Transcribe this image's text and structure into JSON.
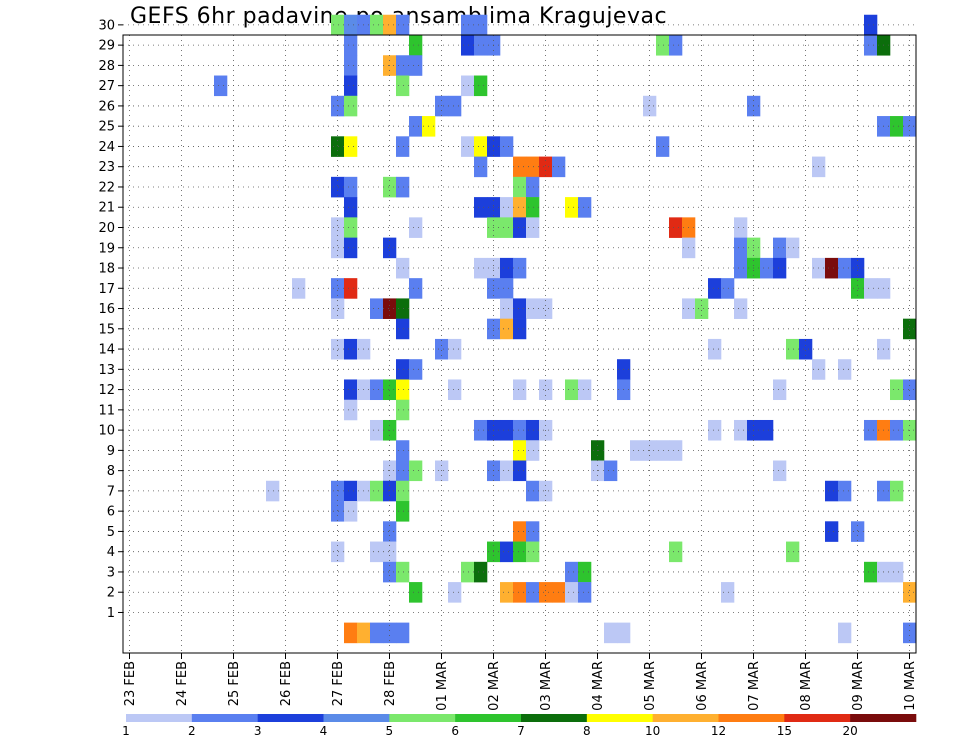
{
  "title": "GEFS 6hr padavine po ansamblima Kragujevac",
  "chart_data": {
    "type": "heatmap",
    "title": "GEFS 6hr padavine po ansamblima Kragujevac",
    "y_ticks": [
      "1",
      "2",
      "3",
      "4",
      "5",
      "6",
      "7",
      "8",
      "9",
      "10",
      "11",
      "12",
      "13",
      "14",
      "15",
      "16",
      "17",
      "18",
      "19",
      "20",
      "21",
      "22",
      "23",
      "24",
      "25",
      "26",
      "27",
      "28",
      "29",
      "30"
    ],
    "x_ticks": [
      "23 FEB",
      "24 FEB",
      "25 FEB",
      "26 FEB",
      "27 FEB",
      "28 FEB",
      "01 MAR",
      "02 MAR",
      "03 MAR",
      "04 MAR",
      "05 MAR",
      "06 MAR",
      "07 MAR",
      "08 MAR",
      "09 MAR",
      "10 MAR"
    ],
    "time_step_hours": 6,
    "members": 30,
    "legend_labels": [
      "1",
      "2",
      "3",
      "4",
      "5",
      "6",
      "7",
      "8",
      "10",
      "12",
      "15",
      "20"
    ],
    "legend_colors": [
      "#bcc8f5",
      "#5a7ff0",
      "#1c3fdb",
      "#5b8be8",
      "#7be86c",
      "#2ec42e",
      "#0c6e0c",
      "#ffff00",
      "#ffb030",
      "#ff7d12",
      "#e02a14",
      "#7a0c0c"
    ],
    "cells": [
      {
        "m": 30,
        "t": 16,
        "c": 4
      },
      {
        "m": 30,
        "t": 17,
        "c": 3
      },
      {
        "m": 30,
        "t": 18,
        "c": 1
      },
      {
        "m": 30,
        "t": 19,
        "c": 4
      },
      {
        "m": 30,
        "t": 20,
        "c": 8
      },
      {
        "m": 30,
        "t": 21,
        "c": 1
      },
      {
        "m": 30,
        "t": 26,
        "c": 1
      },
      {
        "m": 30,
        "t": 27,
        "c": 1
      },
      {
        "m": 30,
        "t": 57,
        "c": 2
      },
      {
        "m": 29,
        "t": 17,
        "c": 1
      },
      {
        "m": 29,
        "t": 22,
        "c": 5
      },
      {
        "m": 29,
        "t": 26,
        "c": 2
      },
      {
        "m": 29,
        "t": 27,
        "c": 1
      },
      {
        "m": 29,
        "t": 28,
        "c": 1
      },
      {
        "m": 29,
        "t": 41,
        "c": 4
      },
      {
        "m": 29,
        "t": 42,
        "c": 1
      },
      {
        "m": 29,
        "t": 57,
        "c": 1
      },
      {
        "m": 29,
        "t": 58,
        "c": 6
      },
      {
        "m": 28,
        "t": 17,
        "c": 1
      },
      {
        "m": 28,
        "t": 20,
        "c": 8
      },
      {
        "m": 28,
        "t": 21,
        "c": 1
      },
      {
        "m": 28,
        "t": 22,
        "c": 1
      },
      {
        "m": 27,
        "t": 7,
        "c": 1
      },
      {
        "m": 27,
        "t": 17,
        "c": 2
      },
      {
        "m": 27,
        "t": 21,
        "c": 4
      },
      {
        "m": 27,
        "t": 26,
        "c": 0
      },
      {
        "m": 27,
        "t": 27,
        "c": 5
      },
      {
        "m": 26,
        "t": 16,
        "c": 1
      },
      {
        "m": 26,
        "t": 17,
        "c": 4
      },
      {
        "m": 26,
        "t": 24,
        "c": 1
      },
      {
        "m": 26,
        "t": 25,
        "c": 1
      },
      {
        "m": 26,
        "t": 40,
        "c": 0
      },
      {
        "m": 26,
        "t": 48,
        "c": 1
      },
      {
        "m": 25,
        "t": 22,
        "c": 1
      },
      {
        "m": 25,
        "t": 23,
        "c": 7
      },
      {
        "m": 25,
        "t": 58,
        "c": 1
      },
      {
        "m": 25,
        "t": 59,
        "c": 5
      },
      {
        "m": 25,
        "t": 60,
        "c": 1
      },
      {
        "m": 24,
        "t": 16,
        "c": 6
      },
      {
        "m": 24,
        "t": 17,
        "c": 7
      },
      {
        "m": 24,
        "t": 21,
        "c": 1
      },
      {
        "m": 24,
        "t": 26,
        "c": 0
      },
      {
        "m": 24,
        "t": 27,
        "c": 7
      },
      {
        "m": 24,
        "t": 28,
        "c": 2
      },
      {
        "m": 24,
        "t": 29,
        "c": 1
      },
      {
        "m": 24,
        "t": 41,
        "c": 1
      },
      {
        "m": 23,
        "t": 27,
        "c": 1
      },
      {
        "m": 23,
        "t": 30,
        "c": 9
      },
      {
        "m": 23,
        "t": 31,
        "c": 9
      },
      {
        "m": 23,
        "t": 32,
        "c": 10
      },
      {
        "m": 23,
        "t": 33,
        "c": 1
      },
      {
        "m": 23,
        "t": 53,
        "c": 0
      },
      {
        "m": 22,
        "t": 16,
        "c": 2
      },
      {
        "m": 22,
        "t": 17,
        "c": 1
      },
      {
        "m": 22,
        "t": 20,
        "c": 4
      },
      {
        "m": 22,
        "t": 21,
        "c": 1
      },
      {
        "m": 22,
        "t": 30,
        "c": 4
      },
      {
        "m": 22,
        "t": 31,
        "c": 1
      },
      {
        "m": 21,
        "t": 17,
        "c": 2
      },
      {
        "m": 21,
        "t": 27,
        "c": 2
      },
      {
        "m": 21,
        "t": 28,
        "c": 2
      },
      {
        "m": 21,
        "t": 29,
        "c": 0
      },
      {
        "m": 21,
        "t": 30,
        "c": 8
      },
      {
        "m": 21,
        "t": 31,
        "c": 5
      },
      {
        "m": 21,
        "t": 34,
        "c": 7
      },
      {
        "m": 21,
        "t": 35,
        "c": 1
      },
      {
        "m": 20,
        "t": 16,
        "c": 0
      },
      {
        "m": 20,
        "t": 17,
        "c": 4
      },
      {
        "m": 20,
        "t": 22,
        "c": 0
      },
      {
        "m": 20,
        "t": 28,
        "c": 4
      },
      {
        "m": 20,
        "t": 29,
        "c": 4
      },
      {
        "m": 20,
        "t": 30,
        "c": 2
      },
      {
        "m": 20,
        "t": 31,
        "c": 0
      },
      {
        "m": 20,
        "t": 42,
        "c": 10
      },
      {
        "m": 20,
        "t": 43,
        "c": 9
      },
      {
        "m": 20,
        "t": 47,
        "c": 0
      },
      {
        "m": 19,
        "t": 16,
        "c": 0
      },
      {
        "m": 19,
        "t": 17,
        "c": 2
      },
      {
        "m": 19,
        "t": 20,
        "c": 2
      },
      {
        "m": 19,
        "t": 43,
        "c": 0
      },
      {
        "m": 19,
        "t": 47,
        "c": 1
      },
      {
        "m": 19,
        "t": 48,
        "c": 4
      },
      {
        "m": 19,
        "t": 50,
        "c": 1
      },
      {
        "m": 19,
        "t": 51,
        "c": 0
      },
      {
        "m": 18,
        "t": 21,
        "c": 0
      },
      {
        "m": 18,
        "t": 27,
        "c": 0
      },
      {
        "m": 18,
        "t": 28,
        "c": 0
      },
      {
        "m": 18,
        "t": 29,
        "c": 2
      },
      {
        "m": 18,
        "t": 30,
        "c": 1
      },
      {
        "m": 18,
        "t": 47,
        "c": 1
      },
      {
        "m": 18,
        "t": 48,
        "c": 5
      },
      {
        "m": 18,
        "t": 49,
        "c": 1
      },
      {
        "m": 18,
        "t": 50,
        "c": 2
      },
      {
        "m": 18,
        "t": 53,
        "c": 0
      },
      {
        "m": 18,
        "t": 54,
        "c": 11
      },
      {
        "m": 18,
        "t": 55,
        "c": 1
      },
      {
        "m": 18,
        "t": 56,
        "c": 2
      },
      {
        "m": 17,
        "t": 13,
        "c": 0
      },
      {
        "m": 17,
        "t": 16,
        "c": 1
      },
      {
        "m": 17,
        "t": 17,
        "c": 10
      },
      {
        "m": 17,
        "t": 22,
        "c": 1
      },
      {
        "m": 17,
        "t": 28,
        "c": 1
      },
      {
        "m": 17,
        "t": 29,
        "c": 1
      },
      {
        "m": 17,
        "t": 45,
        "c": 2
      },
      {
        "m": 17,
        "t": 46,
        "c": 1
      },
      {
        "m": 17,
        "t": 56,
        "c": 5
      },
      {
        "m": 17,
        "t": 57,
        "c": 0
      },
      {
        "m": 17,
        "t": 58,
        "c": 0
      },
      {
        "m": 16,
        "t": 16,
        "c": 0
      },
      {
        "m": 16,
        "t": 19,
        "c": 1
      },
      {
        "m": 16,
        "t": 20,
        "c": 11
      },
      {
        "m": 16,
        "t": 21,
        "c": 6
      },
      {
        "m": 16,
        "t": 29,
        "c": 0
      },
      {
        "m": 16,
        "t": 30,
        "c": 2
      },
      {
        "m": 16,
        "t": 31,
        "c": 0
      },
      {
        "m": 16,
        "t": 32,
        "c": 0
      },
      {
        "m": 16,
        "t": 43,
        "c": 0
      },
      {
        "m": 16,
        "t": 44,
        "c": 4
      },
      {
        "m": 16,
        "t": 47,
        "c": 0
      },
      {
        "m": 15,
        "t": 21,
        "c": 2
      },
      {
        "m": 15,
        "t": 28,
        "c": 1
      },
      {
        "m": 15,
        "t": 29,
        "c": 8
      },
      {
        "m": 15,
        "t": 30,
        "c": 2
      },
      {
        "m": 15,
        "t": 60,
        "c": 6
      },
      {
        "m": 14,
        "t": 16,
        "c": 0
      },
      {
        "m": 14,
        "t": 17,
        "c": 2
      },
      {
        "m": 14,
        "t": 18,
        "c": 0
      },
      {
        "m": 14,
        "t": 24,
        "c": 1
      },
      {
        "m": 14,
        "t": 25,
        "c": 0
      },
      {
        "m": 14,
        "t": 45,
        "c": 0
      },
      {
        "m": 14,
        "t": 51,
        "c": 4
      },
      {
        "m": 14,
        "t": 52,
        "c": 2
      },
      {
        "m": 14,
        "t": 58,
        "c": 0
      },
      {
        "m": 13,
        "t": 21,
        "c": 2
      },
      {
        "m": 13,
        "t": 22,
        "c": 1
      },
      {
        "m": 13,
        "t": 38,
        "c": 2
      },
      {
        "m": 13,
        "t": 53,
        "c": 0
      },
      {
        "m": 13,
        "t": 55,
        "c": 0
      },
      {
        "m": 12,
        "t": 17,
        "c": 2
      },
      {
        "m": 12,
        "t": 18,
        "c": 0
      },
      {
        "m": 12,
        "t": 19,
        "c": 1
      },
      {
        "m": 12,
        "t": 20,
        "c": 5
      },
      {
        "m": 12,
        "t": 21,
        "c": 7
      },
      {
        "m": 12,
        "t": 25,
        "c": 0
      },
      {
        "m": 12,
        "t": 30,
        "c": 0
      },
      {
        "m": 12,
        "t": 32,
        "c": 0
      },
      {
        "m": 12,
        "t": 34,
        "c": 4
      },
      {
        "m": 12,
        "t": 35,
        "c": 0
      },
      {
        "m": 12,
        "t": 38,
        "c": 1
      },
      {
        "m": 12,
        "t": 50,
        "c": 0
      },
      {
        "m": 12,
        "t": 59,
        "c": 4
      },
      {
        "m": 12,
        "t": 60,
        "c": 1
      },
      {
        "m": 11,
        "t": 17,
        "c": 0
      },
      {
        "m": 11,
        "t": 21,
        "c": 4
      },
      {
        "m": 10,
        "t": 19,
        "c": 0
      },
      {
        "m": 10,
        "t": 20,
        "c": 5
      },
      {
        "m": 10,
        "t": 27,
        "c": 1
      },
      {
        "m": 10,
        "t": 28,
        "c": 2
      },
      {
        "m": 10,
        "t": 29,
        "c": 2
      },
      {
        "m": 10,
        "t": 30,
        "c": 1
      },
      {
        "m": 10,
        "t": 31,
        "c": 2
      },
      {
        "m": 10,
        "t": 32,
        "c": 0
      },
      {
        "m": 10,
        "t": 45,
        "c": 0
      },
      {
        "m": 10,
        "t": 47,
        "c": 0
      },
      {
        "m": 10,
        "t": 48,
        "c": 2
      },
      {
        "m": 10,
        "t": 49,
        "c": 2
      },
      {
        "m": 10,
        "t": 57,
        "c": 1
      },
      {
        "m": 10,
        "t": 58,
        "c": 9
      },
      {
        "m": 10,
        "t": 59,
        "c": 1
      },
      {
        "m": 10,
        "t": 60,
        "c": 4
      },
      {
        "m": 9,
        "t": 21,
        "c": 1
      },
      {
        "m": 9,
        "t": 30,
        "c": 7
      },
      {
        "m": 9,
        "t": 31,
        "c": 0
      },
      {
        "m": 9,
        "t": 36,
        "c": 6
      },
      {
        "m": 9,
        "t": 39,
        "c": 0
      },
      {
        "m": 9,
        "t": 40,
        "c": 0
      },
      {
        "m": 9,
        "t": 41,
        "c": 0
      },
      {
        "m": 9,
        "t": 42,
        "c": 0
      },
      {
        "m": 8,
        "t": 20,
        "c": 0
      },
      {
        "m": 8,
        "t": 21,
        "c": 1
      },
      {
        "m": 8,
        "t": 22,
        "c": 4
      },
      {
        "m": 8,
        "t": 24,
        "c": 0
      },
      {
        "m": 8,
        "t": 28,
        "c": 1
      },
      {
        "m": 8,
        "t": 29,
        "c": 0
      },
      {
        "m": 8,
        "t": 30,
        "c": 2
      },
      {
        "m": 8,
        "t": 36,
        "c": 0
      },
      {
        "m": 8,
        "t": 37,
        "c": 1
      },
      {
        "m": 8,
        "t": 50,
        "c": 0
      },
      {
        "m": 7,
        "t": 11,
        "c": 0
      },
      {
        "m": 7,
        "t": 16,
        "c": 1
      },
      {
        "m": 7,
        "t": 17,
        "c": 2
      },
      {
        "m": 7,
        "t": 18,
        "c": 0
      },
      {
        "m": 7,
        "t": 19,
        "c": 4
      },
      {
        "m": 7,
        "t": 20,
        "c": 2
      },
      {
        "m": 7,
        "t": 21,
        "c": 4
      },
      {
        "m": 7,
        "t": 31,
        "c": 1
      },
      {
        "m": 7,
        "t": 32,
        "c": 0
      },
      {
        "m": 7,
        "t": 54,
        "c": 2
      },
      {
        "m": 7,
        "t": 55,
        "c": 1
      },
      {
        "m": 7,
        "t": 58,
        "c": 1
      },
      {
        "m": 7,
        "t": 59,
        "c": 4
      },
      {
        "m": 6,
        "t": 16,
        "c": 1
      },
      {
        "m": 6,
        "t": 17,
        "c": 0
      },
      {
        "m": 6,
        "t": 21,
        "c": 5
      },
      {
        "m": 5,
        "t": 20,
        "c": 1
      },
      {
        "m": 5,
        "t": 30,
        "c": 9
      },
      {
        "m": 5,
        "t": 31,
        "c": 1
      },
      {
        "m": 5,
        "t": 54,
        "c": 2
      },
      {
        "m": 5,
        "t": 56,
        "c": 1
      },
      {
        "m": 4,
        "t": 16,
        "c": 0
      },
      {
        "m": 4,
        "t": 19,
        "c": 0
      },
      {
        "m": 4,
        "t": 20,
        "c": 0
      },
      {
        "m": 4,
        "t": 28,
        "c": 5
      },
      {
        "m": 4,
        "t": 29,
        "c": 2
      },
      {
        "m": 4,
        "t": 30,
        "c": 5
      },
      {
        "m": 4,
        "t": 31,
        "c": 4
      },
      {
        "m": 4,
        "t": 42,
        "c": 4
      },
      {
        "m": 4,
        "t": 51,
        "c": 4
      },
      {
        "m": 3,
        "t": 20,
        "c": 1
      },
      {
        "m": 3,
        "t": 21,
        "c": 4
      },
      {
        "m": 3,
        "t": 26,
        "c": 4
      },
      {
        "m": 3,
        "t": 27,
        "c": 6
      },
      {
        "m": 3,
        "t": 34,
        "c": 1
      },
      {
        "m": 3,
        "t": 35,
        "c": 5
      },
      {
        "m": 3,
        "t": 57,
        "c": 5
      },
      {
        "m": 3,
        "t": 58,
        "c": 0
      },
      {
        "m": 3,
        "t": 59,
        "c": 0
      },
      {
        "m": 2,
        "t": 22,
        "c": 5
      },
      {
        "m": 2,
        "t": 25,
        "c": 0
      },
      {
        "m": 2,
        "t": 29,
        "c": 8
      },
      {
        "m": 2,
        "t": 30,
        "c": 9
      },
      {
        "m": 2,
        "t": 31,
        "c": 1
      },
      {
        "m": 2,
        "t": 32,
        "c": 9
      },
      {
        "m": 2,
        "t": 33,
        "c": 9
      },
      {
        "m": 2,
        "t": 34,
        "c": 0
      },
      {
        "m": 2,
        "t": 35,
        "c": 1
      },
      {
        "m": 2,
        "t": 46,
        "c": 0
      },
      {
        "m": 2,
        "t": 60,
        "c": 8
      },
      {
        "m": 0,
        "t": 17,
        "c": 9
      },
      {
        "m": 0,
        "t": 18,
        "c": 8
      },
      {
        "m": 0,
        "t": 19,
        "c": 1
      },
      {
        "m": 0,
        "t": 20,
        "c": 1
      },
      {
        "m": 0,
        "t": 21,
        "c": 1
      },
      {
        "m": 0,
        "t": 37,
        "c": 0
      },
      {
        "m": 0,
        "t": 38,
        "c": 0
      },
      {
        "m": 0,
        "t": 55,
        "c": 0
      },
      {
        "m": 0,
        "t": 60,
        "c": 1
      }
    ]
  }
}
